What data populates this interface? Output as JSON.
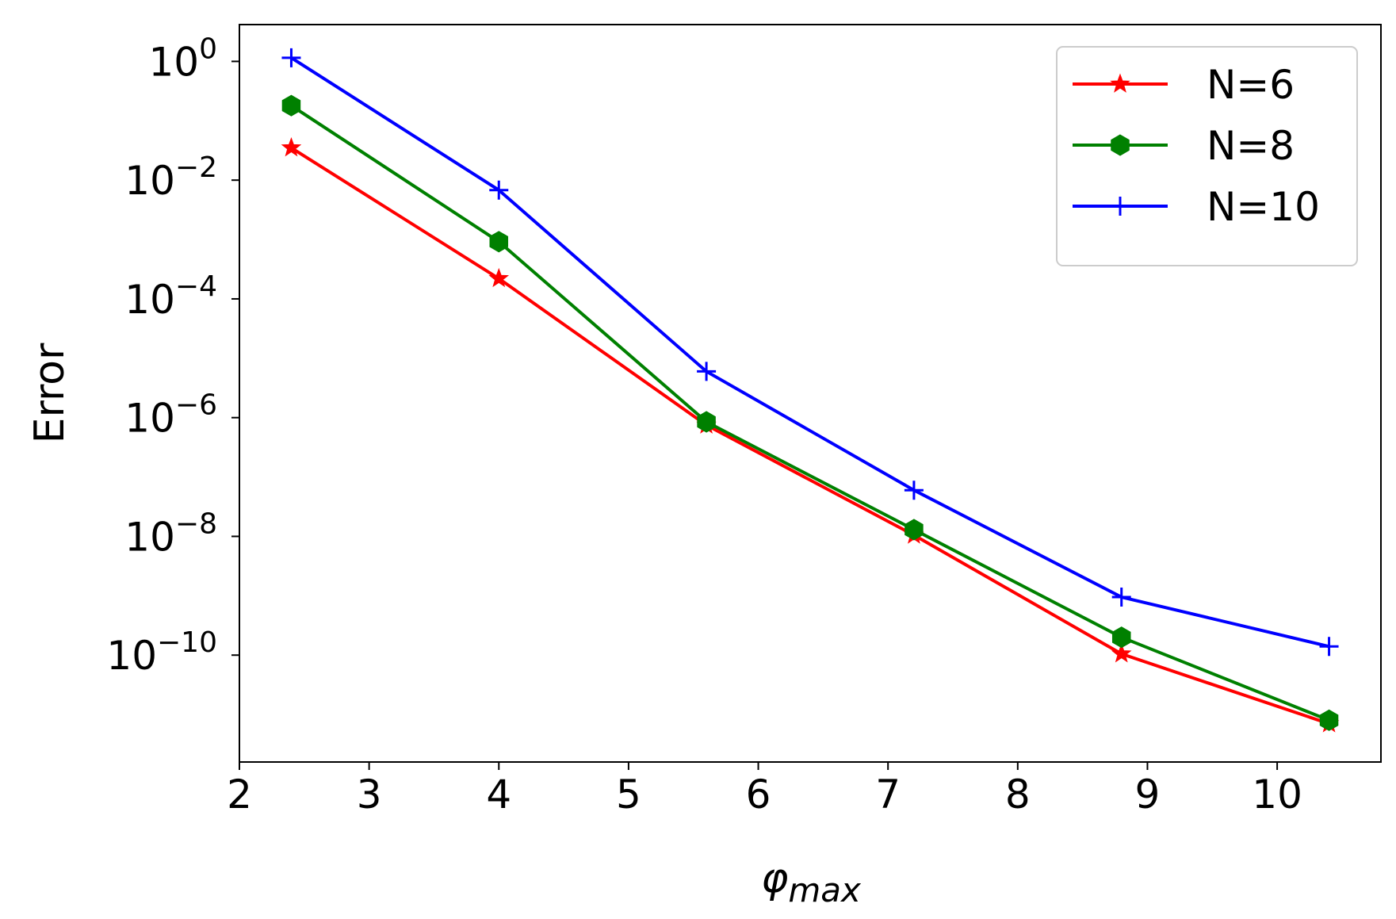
{
  "chart_data": {
    "type": "line",
    "title": "",
    "xlabel": "φ",
    "xlabel_subscript": "max",
    "ylabel": "Error",
    "xscale": "linear",
    "yscale": "log",
    "xlim": [
      2,
      10.8
    ],
    "ylim_log10": [
      -11.8,
      0.62
    ],
    "xticks": [
      2,
      3,
      4,
      5,
      6,
      7,
      8,
      9,
      10
    ],
    "xtick_labels": [
      "2",
      "3",
      "4",
      "5",
      "6",
      "7",
      "8",
      "9",
      "10"
    ],
    "yticks_log10": [
      0,
      -2,
      -4,
      -6,
      -8,
      -10
    ],
    "ytick_base": "10",
    "ytick_exponents": [
      "0",
      "−2",
      "−4",
      "−6",
      "−8",
      "−10"
    ],
    "legend_position": "top-right",
    "x": [
      2.4,
      4.0,
      5.6,
      7.2,
      8.8,
      10.4
    ],
    "series": [
      {
        "name": "N=6",
        "color": "#ff0000",
        "marker": "star",
        "values": [
          0.035,
          0.00022,
          7.5e-07,
          1.05e-08,
          1.05e-10,
          7e-12
        ]
      },
      {
        "name": "N=8",
        "color": "#008000",
        "marker": "hexagon",
        "values": [
          0.18,
          0.00092,
          8.5e-07,
          1.3e-08,
          2e-10,
          8e-12
        ]
      },
      {
        "name": "N=10",
        "color": "#0000ff",
        "marker": "plus",
        "values": [
          1.15,
          0.0068,
          6e-06,
          6e-08,
          9.5e-10,
          1.4e-10
        ]
      }
    ]
  }
}
